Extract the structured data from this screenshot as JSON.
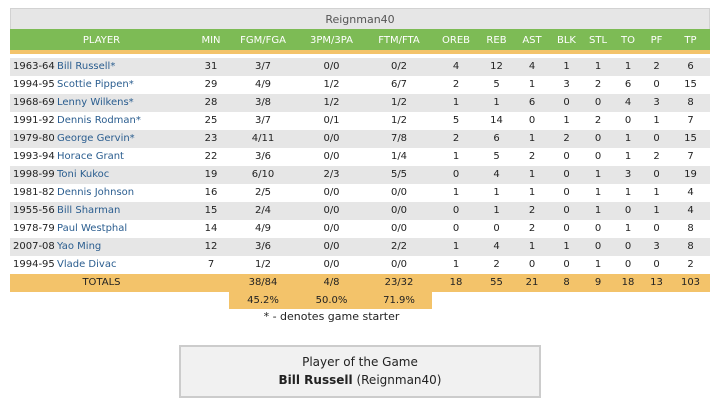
{
  "team": "Reignman40",
  "headers": [
    "PLAYER",
    "MIN",
    "FGM/FGA",
    "3PM/3PA",
    "FTM/FTA",
    "OREB",
    "REB",
    "AST",
    "BLK",
    "STL",
    "TO",
    "PF",
    "TP"
  ],
  "rows": [
    {
      "year": "1963-64",
      "name": "Bill Russell*",
      "min": "31",
      "fg": "3/7",
      "tp3": "0/0",
      "ft": "0/2",
      "oreb": "4",
      "reb": "12",
      "ast": "4",
      "blk": "1",
      "stl": "1",
      "to": "1",
      "pf": "2",
      "pts": "6"
    },
    {
      "year": "1994-95",
      "name": "Scottie Pippen*",
      "min": "29",
      "fg": "4/9",
      "tp3": "1/2",
      "ft": "6/7",
      "oreb": "2",
      "reb": "5",
      "ast": "1",
      "blk": "3",
      "stl": "2",
      "to": "6",
      "pf": "0",
      "pts": "15"
    },
    {
      "year": "1968-69",
      "name": "Lenny Wilkens*",
      "min": "28",
      "fg": "3/8",
      "tp3": "1/2",
      "ft": "1/2",
      "oreb": "1",
      "reb": "1",
      "ast": "6",
      "blk": "0",
      "stl": "0",
      "to": "4",
      "pf": "3",
      "pts": "8"
    },
    {
      "year": "1991-92",
      "name": "Dennis Rodman*",
      "min": "25",
      "fg": "3/7",
      "tp3": "0/1",
      "ft": "1/2",
      "oreb": "5",
      "reb": "14",
      "ast": "0",
      "blk": "1",
      "stl": "2",
      "to": "0",
      "pf": "1",
      "pts": "7"
    },
    {
      "year": "1979-80",
      "name": "George Gervin*",
      "min": "23",
      "fg": "4/11",
      "tp3": "0/0",
      "ft": "7/8",
      "oreb": "2",
      "reb": "6",
      "ast": "1",
      "blk": "2",
      "stl": "0",
      "to": "1",
      "pf": "0",
      "pts": "15"
    },
    {
      "year": "1993-94",
      "name": "Horace Grant",
      "min": "22",
      "fg": "3/6",
      "tp3": "0/0",
      "ft": "1/4",
      "oreb": "1",
      "reb": "5",
      "ast": "2",
      "blk": "0",
      "stl": "0",
      "to": "1",
      "pf": "2",
      "pts": "7"
    },
    {
      "year": "1998-99",
      "name": "Toni Kukoc",
      "min": "19",
      "fg": "6/10",
      "tp3": "2/3",
      "ft": "5/5",
      "oreb": "0",
      "reb": "4",
      "ast": "1",
      "blk": "0",
      "stl": "1",
      "to": "3",
      "pf": "0",
      "pts": "19"
    },
    {
      "year": "1981-82",
      "name": "Dennis Johnson",
      "min": "16",
      "fg": "2/5",
      "tp3": "0/0",
      "ft": "0/0",
      "oreb": "1",
      "reb": "1",
      "ast": "1",
      "blk": "0",
      "stl": "1",
      "to": "1",
      "pf": "1",
      "pts": "4"
    },
    {
      "year": "1955-56",
      "name": "Bill Sharman",
      "min": "15",
      "fg": "2/4",
      "tp3": "0/0",
      "ft": "0/0",
      "oreb": "0",
      "reb": "1",
      "ast": "2",
      "blk": "0",
      "stl": "1",
      "to": "0",
      "pf": "1",
      "pts": "4"
    },
    {
      "year": "1978-79",
      "name": "Paul Westphal",
      "min": "14",
      "fg": "4/9",
      "tp3": "0/0",
      "ft": "0/0",
      "oreb": "0",
      "reb": "0",
      "ast": "2",
      "blk": "0",
      "stl": "0",
      "to": "1",
      "pf": "0",
      "pts": "8"
    },
    {
      "year": "2007-08",
      "name": "Yao Ming",
      "min": "12",
      "fg": "3/6",
      "tp3": "0/0",
      "ft": "2/2",
      "oreb": "1",
      "reb": "4",
      "ast": "1",
      "blk": "1",
      "stl": "0",
      "to": "0",
      "pf": "3",
      "pts": "8"
    },
    {
      "year": "1994-95",
      "name": "Vlade Divac",
      "min": "7",
      "fg": "1/2",
      "tp3": "0/0",
      "ft": "0/0",
      "oreb": "1",
      "reb": "2",
      "ast": "0",
      "blk": "0",
      "stl": "1",
      "to": "0",
      "pf": "0",
      "pts": "2"
    }
  ],
  "totals": {
    "label": "TOTALS",
    "fg": "38/84",
    "tp3": "4/8",
    "ft": "23/32",
    "oreb": "18",
    "reb": "55",
    "ast": "21",
    "blk": "8",
    "stl": "9",
    "to": "18",
    "pf": "13",
    "pts": "103"
  },
  "percentages": {
    "fg": "45.2%",
    "tp3": "50.0%",
    "ft": "71.9%"
  },
  "note": "* - denotes game starter",
  "potg": {
    "title": "Player of the Game",
    "player": "Bill Russell",
    "team": "(Reignman40)"
  },
  "colors": {
    "header_green": "#7dbb55",
    "totals_gold": "#f3c36a",
    "link_blue": "#2a5d8f",
    "row_gray": "#e6e6e6"
  }
}
